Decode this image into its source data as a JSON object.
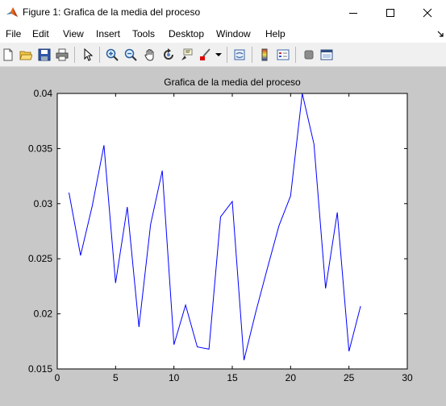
{
  "window": {
    "title": "Figure 1: Grafica de la media del proceso",
    "icon": "matlab-logo"
  },
  "menu": [
    "File",
    "Edit",
    "View",
    "Insert",
    "Tools",
    "Desktop",
    "Window",
    "Help"
  ],
  "toolbar_icons": [
    "new-figure",
    "open-file",
    "save",
    "print",
    "pointer",
    "zoom-in",
    "zoom-out",
    "pan",
    "rotate-3d",
    "data-cursor",
    "brush",
    "link-plot",
    "colorbar",
    "legend",
    "hide-plot-tools",
    "show-plot-tools"
  ],
  "colors": {
    "line": "#0000ff",
    "figure_background": "#c8c8c8"
  },
  "chart_data": {
    "type": "line",
    "title": "Grafica de la media del proceso",
    "xlabel": "",
    "ylabel": "",
    "xlim": [
      0,
      30
    ],
    "ylim": [
      0.015,
      0.04
    ],
    "xticks": [
      "0",
      "5",
      "10",
      "15",
      "20",
      "25",
      "30"
    ],
    "yticks": [
      "0.015",
      "0.02",
      "0.025",
      "0.03",
      "0.035",
      "0.04"
    ],
    "grid": false,
    "series": [
      {
        "x": [
          1,
          2,
          3,
          4,
          5,
          6,
          7,
          8,
          9,
          10,
          11,
          12,
          13,
          14,
          15,
          16,
          17,
          18,
          19,
          20,
          21,
          22,
          23,
          24,
          25,
          26
        ],
        "y": [
          0.031,
          0.0253,
          0.0298,
          0.0353,
          0.0228,
          0.0297,
          0.0188,
          0.0281,
          0.033,
          0.0172,
          0.0208,
          0.017,
          0.0168,
          0.0288,
          0.0302,
          0.0158,
          0.0201,
          0.0241,
          0.028,
          0.0307,
          0.04,
          0.0354,
          0.0223,
          0.0292,
          0.0166,
          0.0207
        ]
      }
    ]
  }
}
